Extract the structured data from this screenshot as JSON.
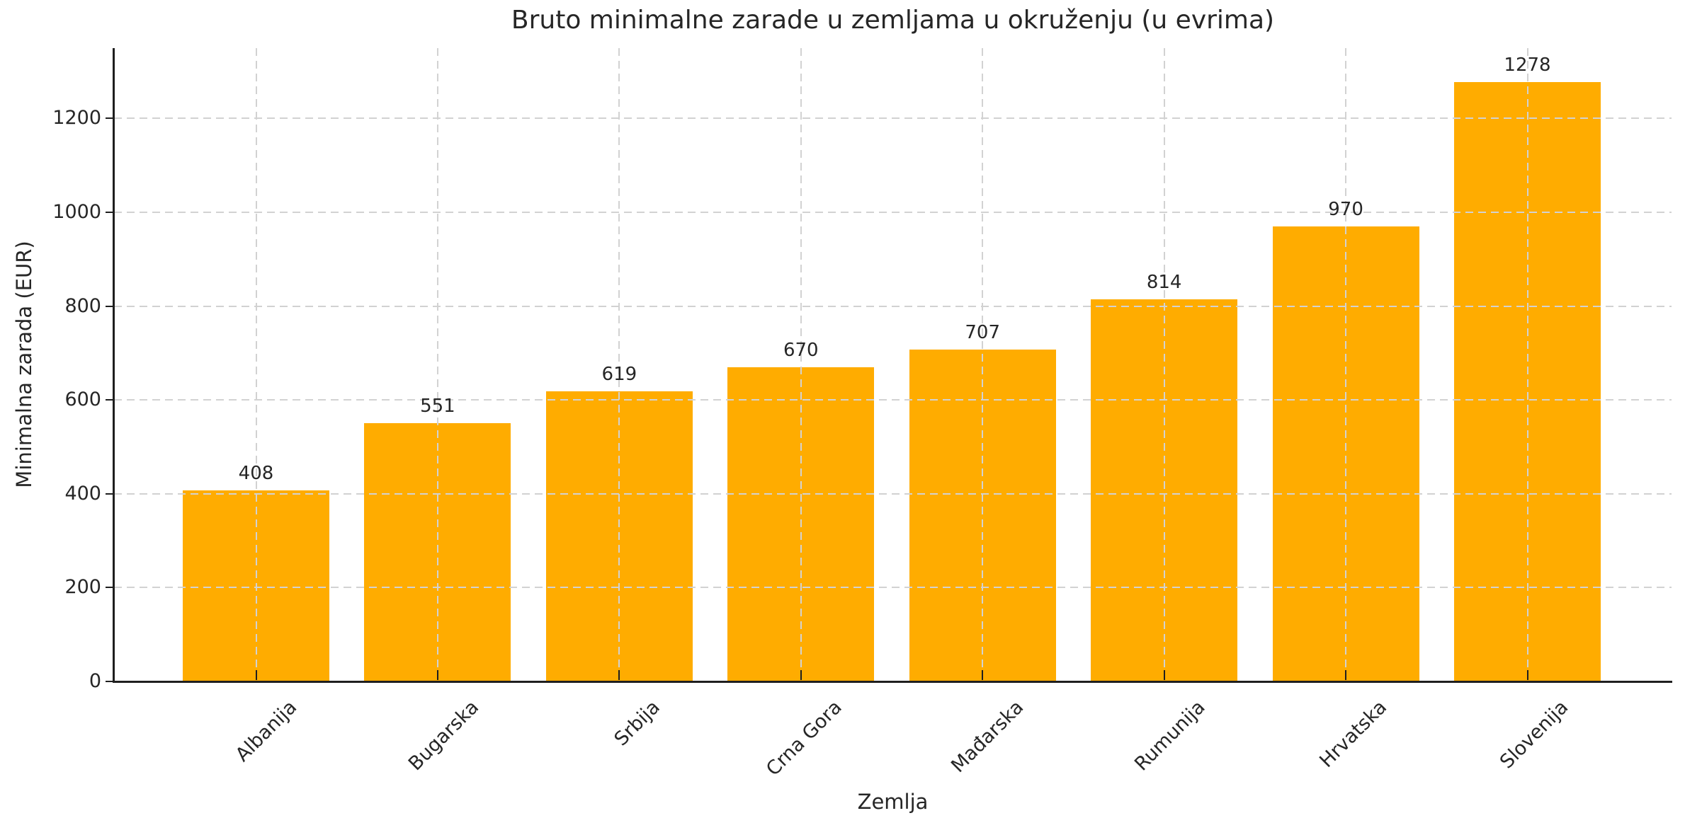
{
  "figure": {
    "title": "Bruto minimalne zarade u zemljama u okruženju (u evrima)",
    "xlabel": "Zemlja",
    "ylabel": "Minimalna zarada (EUR)"
  },
  "chart_data": {
    "type": "bar",
    "title": "Bruto minimalne zarade u zemljama u okruženju (u evrima)",
    "xlabel": "Zemlja",
    "ylabel": "Minimalna zarada (EUR)",
    "categories": [
      "Albanija",
      "Bugarska",
      "Srbija",
      "Crna Gora",
      "Mađarska",
      "Rumunija",
      "Hrvatska",
      "Slovenija"
    ],
    "values": [
      408,
      551,
      619,
      670,
      707,
      814,
      970,
      1278
    ],
    "bar_labels": [
      "408",
      "551",
      "619",
      "670",
      "707",
      "814",
      "970",
      "1278"
    ],
    "yticks": [
      0,
      200,
      400,
      600,
      800,
      1000,
      1200
    ],
    "ylim": [
      0,
      1350
    ],
    "grid": true,
    "grid_style": "dashed",
    "grid_color": "#d2d2d2",
    "bar_color": "#FFAC00",
    "text_color": "#262626",
    "spine_color": "#1f1f1f",
    "x_tick_rotation_deg": 45,
    "legend": null
  }
}
